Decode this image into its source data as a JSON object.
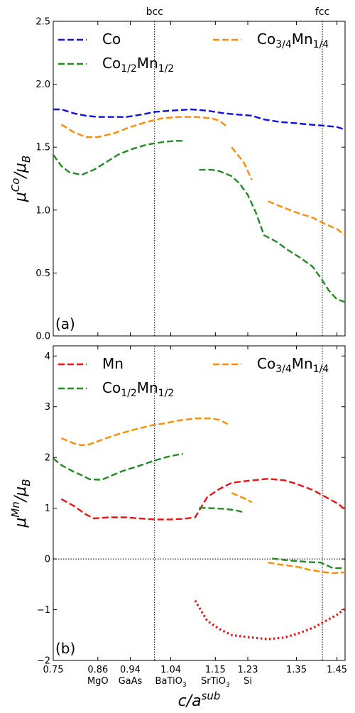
{
  "chart_data": [
    {
      "type": "line",
      "panel_label": "(a)",
      "ylabel": "μ^{Co}/μ_B",
      "xlim": [
        0.75,
        1.47
      ],
      "ylim": [
        0.0,
        2.5
      ],
      "yticks": [
        "0.0",
        "0.5",
        "1.0",
        "1.5",
        "2.0",
        "2.5"
      ],
      "yticks_values": [
        0.0,
        0.5,
        1.0,
        1.5,
        2.0,
        2.5
      ],
      "vlines": [
        {
          "x": 1.0,
          "label": "bcc"
        },
        {
          "x": 1.414,
          "label": "fcc"
        }
      ],
      "legend": {
        "placement": "top",
        "entries": [
          "Co",
          "Co1/2Mn1/2",
          "Co3/4Mn1/4"
        ]
      },
      "series": [
        {
          "name": "Co",
          "color": "#1010ee",
          "style": "dashed",
          "segments": [
            [
              [
                0.75,
                1.8
              ],
              [
                0.77,
                1.8
              ],
              [
                0.8,
                1.77
              ],
              [
                0.83,
                1.75
              ],
              [
                0.86,
                1.74
              ],
              [
                0.9,
                1.74
              ],
              [
                0.93,
                1.74
              ],
              [
                0.97,
                1.76
              ],
              [
                1.0,
                1.78
              ],
              [
                1.04,
                1.79
              ],
              [
                1.09,
                1.8
              ],
              [
                1.13,
                1.79
              ],
              [
                1.17,
                1.77
              ],
              [
                1.2,
                1.76
              ],
              [
                1.24,
                1.75
              ],
              [
                1.27,
                1.72
              ],
              [
                1.31,
                1.7
              ],
              [
                1.35,
                1.69
              ],
              [
                1.38,
                1.68
              ],
              [
                1.42,
                1.67
              ],
              [
                1.45,
                1.66
              ],
              [
                1.47,
                1.64
              ]
            ]
          ]
        },
        {
          "name": "Co3/4Mn1/4",
          "color": "#ff8c00",
          "style": "dashed",
          "segments": [
            [
              [
                0.77,
                1.68
              ],
              [
                0.8,
                1.62
              ],
              [
                0.83,
                1.58
              ],
              [
                0.86,
                1.58
              ],
              [
                0.9,
                1.61
              ],
              [
                0.94,
                1.66
              ],
              [
                0.98,
                1.7
              ],
              [
                1.02,
                1.73
              ],
              [
                1.06,
                1.74
              ],
              [
                1.1,
                1.74
              ],
              [
                1.14,
                1.73
              ],
              [
                1.16,
                1.71
              ],
              [
                1.18,
                1.66
              ]
            ],
            [
              [
                1.19,
                1.5
              ],
              [
                1.22,
                1.38
              ],
              [
                1.24,
                1.24
              ]
            ],
            [
              [
                1.28,
                1.07
              ],
              [
                1.31,
                1.03
              ],
              [
                1.35,
                0.98
              ],
              [
                1.39,
                0.94
              ],
              [
                1.42,
                0.89
              ],
              [
                1.45,
                0.85
              ],
              [
                1.47,
                0.8
              ]
            ]
          ]
        },
        {
          "name": "Co1/2Mn1/2",
          "color": "#228b22",
          "style": "dashed",
          "segments": [
            [
              [
                0.75,
                1.44
              ],
              [
                0.77,
                1.35
              ],
              [
                0.79,
                1.3
              ],
              [
                0.82,
                1.28
              ],
              [
                0.85,
                1.32
              ],
              [
                0.88,
                1.38
              ],
              [
                0.91,
                1.44
              ],
              [
                0.94,
                1.48
              ],
              [
                0.98,
                1.52
              ],
              [
                1.02,
                1.54
              ],
              [
                1.05,
                1.55
              ],
              [
                1.07,
                1.55
              ]
            ],
            [
              [
                1.11,
                1.32
              ],
              [
                1.14,
                1.32
              ],
              [
                1.16,
                1.31
              ],
              [
                1.19,
                1.27
              ],
              [
                1.21,
                1.21
              ],
              [
                1.23,
                1.12
              ],
              [
                1.25,
                0.98
              ],
              [
                1.27,
                0.8
              ],
              [
                1.3,
                0.75
              ],
              [
                1.33,
                0.68
              ],
              [
                1.36,
                0.62
              ],
              [
                1.39,
                0.55
              ],
              [
                1.41,
                0.46
              ],
              [
                1.43,
                0.36
              ],
              [
                1.45,
                0.29
              ],
              [
                1.47,
                0.27
              ]
            ]
          ]
        }
      ]
    },
    {
      "type": "line",
      "panel_label": "(b)",
      "ylabel": "μ^{Mn}/μ_B",
      "xlabel": "c/a^{sub}",
      "xlim": [
        0.75,
        1.47
      ],
      "ylim": [
        -2.0,
        4.2
      ],
      "yticks": [
        "−2",
        "−1",
        "0",
        "1",
        "2",
        "3",
        "4"
      ],
      "yticks_values": [
        -2,
        -1,
        0,
        1,
        2,
        3,
        4
      ],
      "xticks": [
        "0.75",
        "0.86",
        "0.94",
        "1.04",
        "1.15",
        "1.23",
        "1.35",
        "1.45"
      ],
      "xticks_values": [
        0.75,
        0.86,
        0.94,
        1.04,
        1.15,
        1.23,
        1.35,
        1.45
      ],
      "substrates": [
        {
          "x": 0.86,
          "label": "MgO"
        },
        {
          "x": 0.94,
          "label": "GaAs"
        },
        {
          "x": 1.04,
          "label": "BaTiO3"
        },
        {
          "x": 1.15,
          "label": "SrTiO3"
        },
        {
          "x": 1.23,
          "label": "Si"
        }
      ],
      "vlines": [
        {
          "x": 1.0
        },
        {
          "x": 1.414
        }
      ],
      "hline": 0,
      "legend": {
        "placement": "top",
        "entries": [
          "Mn",
          "Co1/2Mn1/2",
          "Co3/4Mn1/4"
        ]
      },
      "series": [
        {
          "name": "Mn",
          "color": "#ee1111",
          "style": "dashed",
          "segments": [
            [
              [
                0.77,
                1.18
              ],
              [
                0.8,
                1.05
              ],
              [
                0.83,
                0.88
              ],
              [
                0.85,
                0.8
              ],
              [
                0.89,
                0.82
              ],
              [
                0.93,
                0.82
              ],
              [
                0.96,
                0.8
              ],
              [
                1.0,
                0.78
              ],
              [
                1.04,
                0.78
              ],
              [
                1.07,
                0.79
              ],
              [
                1.1,
                0.82
              ],
              [
                1.13,
                1.22
              ],
              [
                1.16,
                1.38
              ],
              [
                1.19,
                1.5
              ],
              [
                1.23,
                1.54
              ],
              [
                1.28,
                1.58
              ],
              [
                1.32,
                1.55
              ],
              [
                1.35,
                1.48
              ],
              [
                1.39,
                1.36
              ],
              [
                1.42,
                1.23
              ],
              [
                1.45,
                1.1
              ],
              [
                1.47,
                0.98
              ]
            ]
          ]
        },
        {
          "name": "",
          "color": "#ee1111",
          "style": "dotted",
          "segments": [
            [
              [
                1.1,
                -0.82
              ],
              [
                1.13,
                -1.22
              ],
              [
                1.16,
                -1.38
              ],
              [
                1.19,
                -1.5
              ],
              [
                1.23,
                -1.54
              ],
              [
                1.28,
                -1.58
              ],
              [
                1.32,
                -1.55
              ],
              [
                1.35,
                -1.48
              ],
              [
                1.39,
                -1.36
              ],
              [
                1.42,
                -1.23
              ],
              [
                1.45,
                -1.1
              ],
              [
                1.47,
                -0.98
              ]
            ]
          ]
        },
        {
          "name": "Co3/4Mn1/4",
          "color": "#ff8c00",
          "style": "dashed",
          "segments": [
            [
              [
                0.77,
                2.38
              ],
              [
                0.8,
                2.28
              ],
              [
                0.82,
                2.24
              ],
              [
                0.84,
                2.26
              ],
              [
                0.87,
                2.35
              ],
              [
                0.91,
                2.46
              ],
              [
                0.95,
                2.55
              ],
              [
                0.99,
                2.63
              ],
              [
                1.03,
                2.68
              ],
              [
                1.06,
                2.73
              ],
              [
                1.1,
                2.77
              ],
              [
                1.14,
                2.77
              ],
              [
                1.16,
                2.74
              ],
              [
                1.18,
                2.66
              ]
            ],
            [
              [
                1.19,
                1.3
              ],
              [
                1.22,
                1.2
              ],
              [
                1.24,
                1.12
              ]
            ],
            [
              [
                1.28,
                -0.07
              ],
              [
                1.31,
                -0.11
              ],
              [
                1.35,
                -0.15
              ],
              [
                1.38,
                -0.21
              ],
              [
                1.42,
                -0.26
              ],
              [
                1.44,
                -0.28
              ],
              [
                1.47,
                -0.26
              ]
            ]
          ]
        },
        {
          "name": "Co1/2Mn1/2",
          "color": "#228b22",
          "style": "dashed",
          "segments": [
            [
              [
                0.75,
                1.98
              ],
              [
                0.77,
                1.85
              ],
              [
                0.8,
                1.72
              ],
              [
                0.82,
                1.65
              ],
              [
                0.84,
                1.57
              ],
              [
                0.87,
                1.56
              ],
              [
                0.89,
                1.63
              ],
              [
                0.92,
                1.73
              ],
              [
                0.96,
                1.83
              ],
              [
                1.0,
                1.94
              ],
              [
                1.03,
                2.01
              ],
              [
                1.06,
                2.06
              ],
              [
                1.07,
                2.07
              ]
            ],
            [
              [
                1.11,
                1.01
              ],
              [
                1.14,
                1.0
              ],
              [
                1.17,
                0.99
              ],
              [
                1.2,
                0.96
              ],
              [
                1.22,
                0.92
              ]
            ],
            [
              [
                1.29,
                0.01
              ],
              [
                1.32,
                -0.02
              ],
              [
                1.35,
                -0.04
              ],
              [
                1.38,
                -0.06
              ],
              [
                1.41,
                -0.07
              ],
              [
                1.44,
                -0.18
              ],
              [
                1.47,
                -0.18
              ]
            ]
          ]
        }
      ]
    }
  ],
  "labels": {
    "bcc": "bcc",
    "fcc": "fcc",
    "xlabel_main": "c/a",
    "xlabel_sup": "sub",
    "ylabel_a_mu": "μ",
    "ylabel_a_sup": "Co",
    "ylabel_a_den": "/μ",
    "ylabel_a_sub": "B",
    "ylabel_b_mu": "μ",
    "ylabel_b_sup": "Mn",
    "ylabel_b_den": "/μ",
    "ylabel_b_sub": "B",
    "legend_a": [
      {
        "main": "Co",
        "parts": []
      },
      {
        "main": "Co",
        "parts": [
          [
            "sub",
            "1/2"
          ],
          [
            "norm",
            "Mn"
          ],
          [
            "sub",
            "1/2"
          ]
        ]
      },
      {
        "main": "Co",
        "parts": [
          [
            "sub",
            "3/4"
          ],
          [
            "norm",
            "Mn"
          ],
          [
            "sub",
            "1/4"
          ]
        ]
      }
    ],
    "legend_b": [
      {
        "main": "Mn",
        "parts": []
      },
      {
        "main": "Co",
        "parts": [
          [
            "sub",
            "1/2"
          ],
          [
            "norm",
            "Mn"
          ],
          [
            "sub",
            "1/2"
          ]
        ]
      },
      {
        "main": "Co",
        "parts": [
          [
            "sub",
            "3/4"
          ],
          [
            "norm",
            "Mn"
          ],
          [
            "sub",
            "1/4"
          ]
        ]
      }
    ],
    "substrate_labels": [
      {
        "main": "MgO",
        "sub": ""
      },
      {
        "main": "GaAs",
        "sub": ""
      },
      {
        "main": "BaTiO",
        "sub": "3"
      },
      {
        "main": "SrTiO",
        "sub": "3"
      },
      {
        "main": "Si",
        "sub": ""
      }
    ]
  }
}
